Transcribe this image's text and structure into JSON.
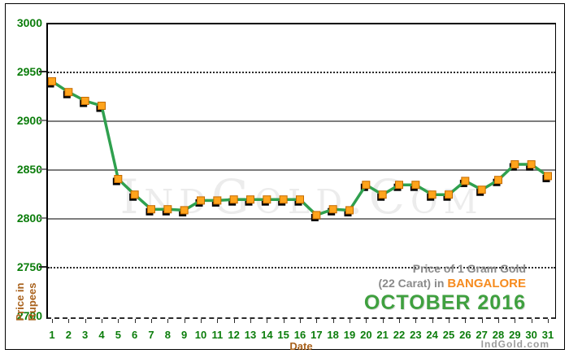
{
  "note": {
    "line1": "Price of 1 Gram Gold",
    "line2_prefix": "(22 Carat) in ",
    "city": "BANGALORE",
    "period": "OCTOBER 2016"
  },
  "branding": {
    "watermark": "IndGold.Com",
    "credit": "IndGold.com"
  },
  "axes": {
    "y_title_line1": "Price in",
    "y_title_line2": "Rupees",
    "x_title": "Date"
  },
  "colors": {
    "line_green": "#2fa04e",
    "marker_fill": "#ffa41c",
    "marker_border": "#c36a00",
    "marker_shadow": "#000000",
    "tick_label_green": "#0b7d0b",
    "axis_title_brown": "#a9621d",
    "note_gray": "#8a8a8a",
    "city_orange": "#f68b1f",
    "period_green": "#3fa03f"
  },
  "chart_data": {
    "type": "line",
    "title": "Price of 1 Gram Gold (22 Carat) in Bangalore - October 2016",
    "xlabel": "Date",
    "ylabel": "Price in Rupees",
    "x": [
      1,
      2,
      3,
      4,
      5,
      6,
      7,
      8,
      9,
      10,
      11,
      12,
      13,
      14,
      15,
      16,
      17,
      18,
      19,
      20,
      21,
      22,
      23,
      24,
      25,
      26,
      27,
      28,
      29,
      30,
      31
    ],
    "values": [
      2940,
      2929,
      2920,
      2915,
      2840,
      2824,
      2809,
      2809,
      2808,
      2818,
      2818,
      2819,
      2819,
      2819,
      2819,
      2819,
      2803,
      2809,
      2808,
      2834,
      2824,
      2834,
      2834,
      2824,
      2824,
      2838,
      2829,
      2839,
      2855,
      2855,
      2843
    ],
    "ylim": [
      2700,
      3000
    ],
    "yticks": [
      3000,
      2950,
      2900,
      2850,
      2800,
      2750,
      2700
    ],
    "ytick_styles": [
      "border",
      "dotted",
      "solid",
      "solid",
      "solid",
      "dotted",
      "axis"
    ],
    "grid": "horizontal",
    "legend": "none",
    "marker": "square"
  }
}
